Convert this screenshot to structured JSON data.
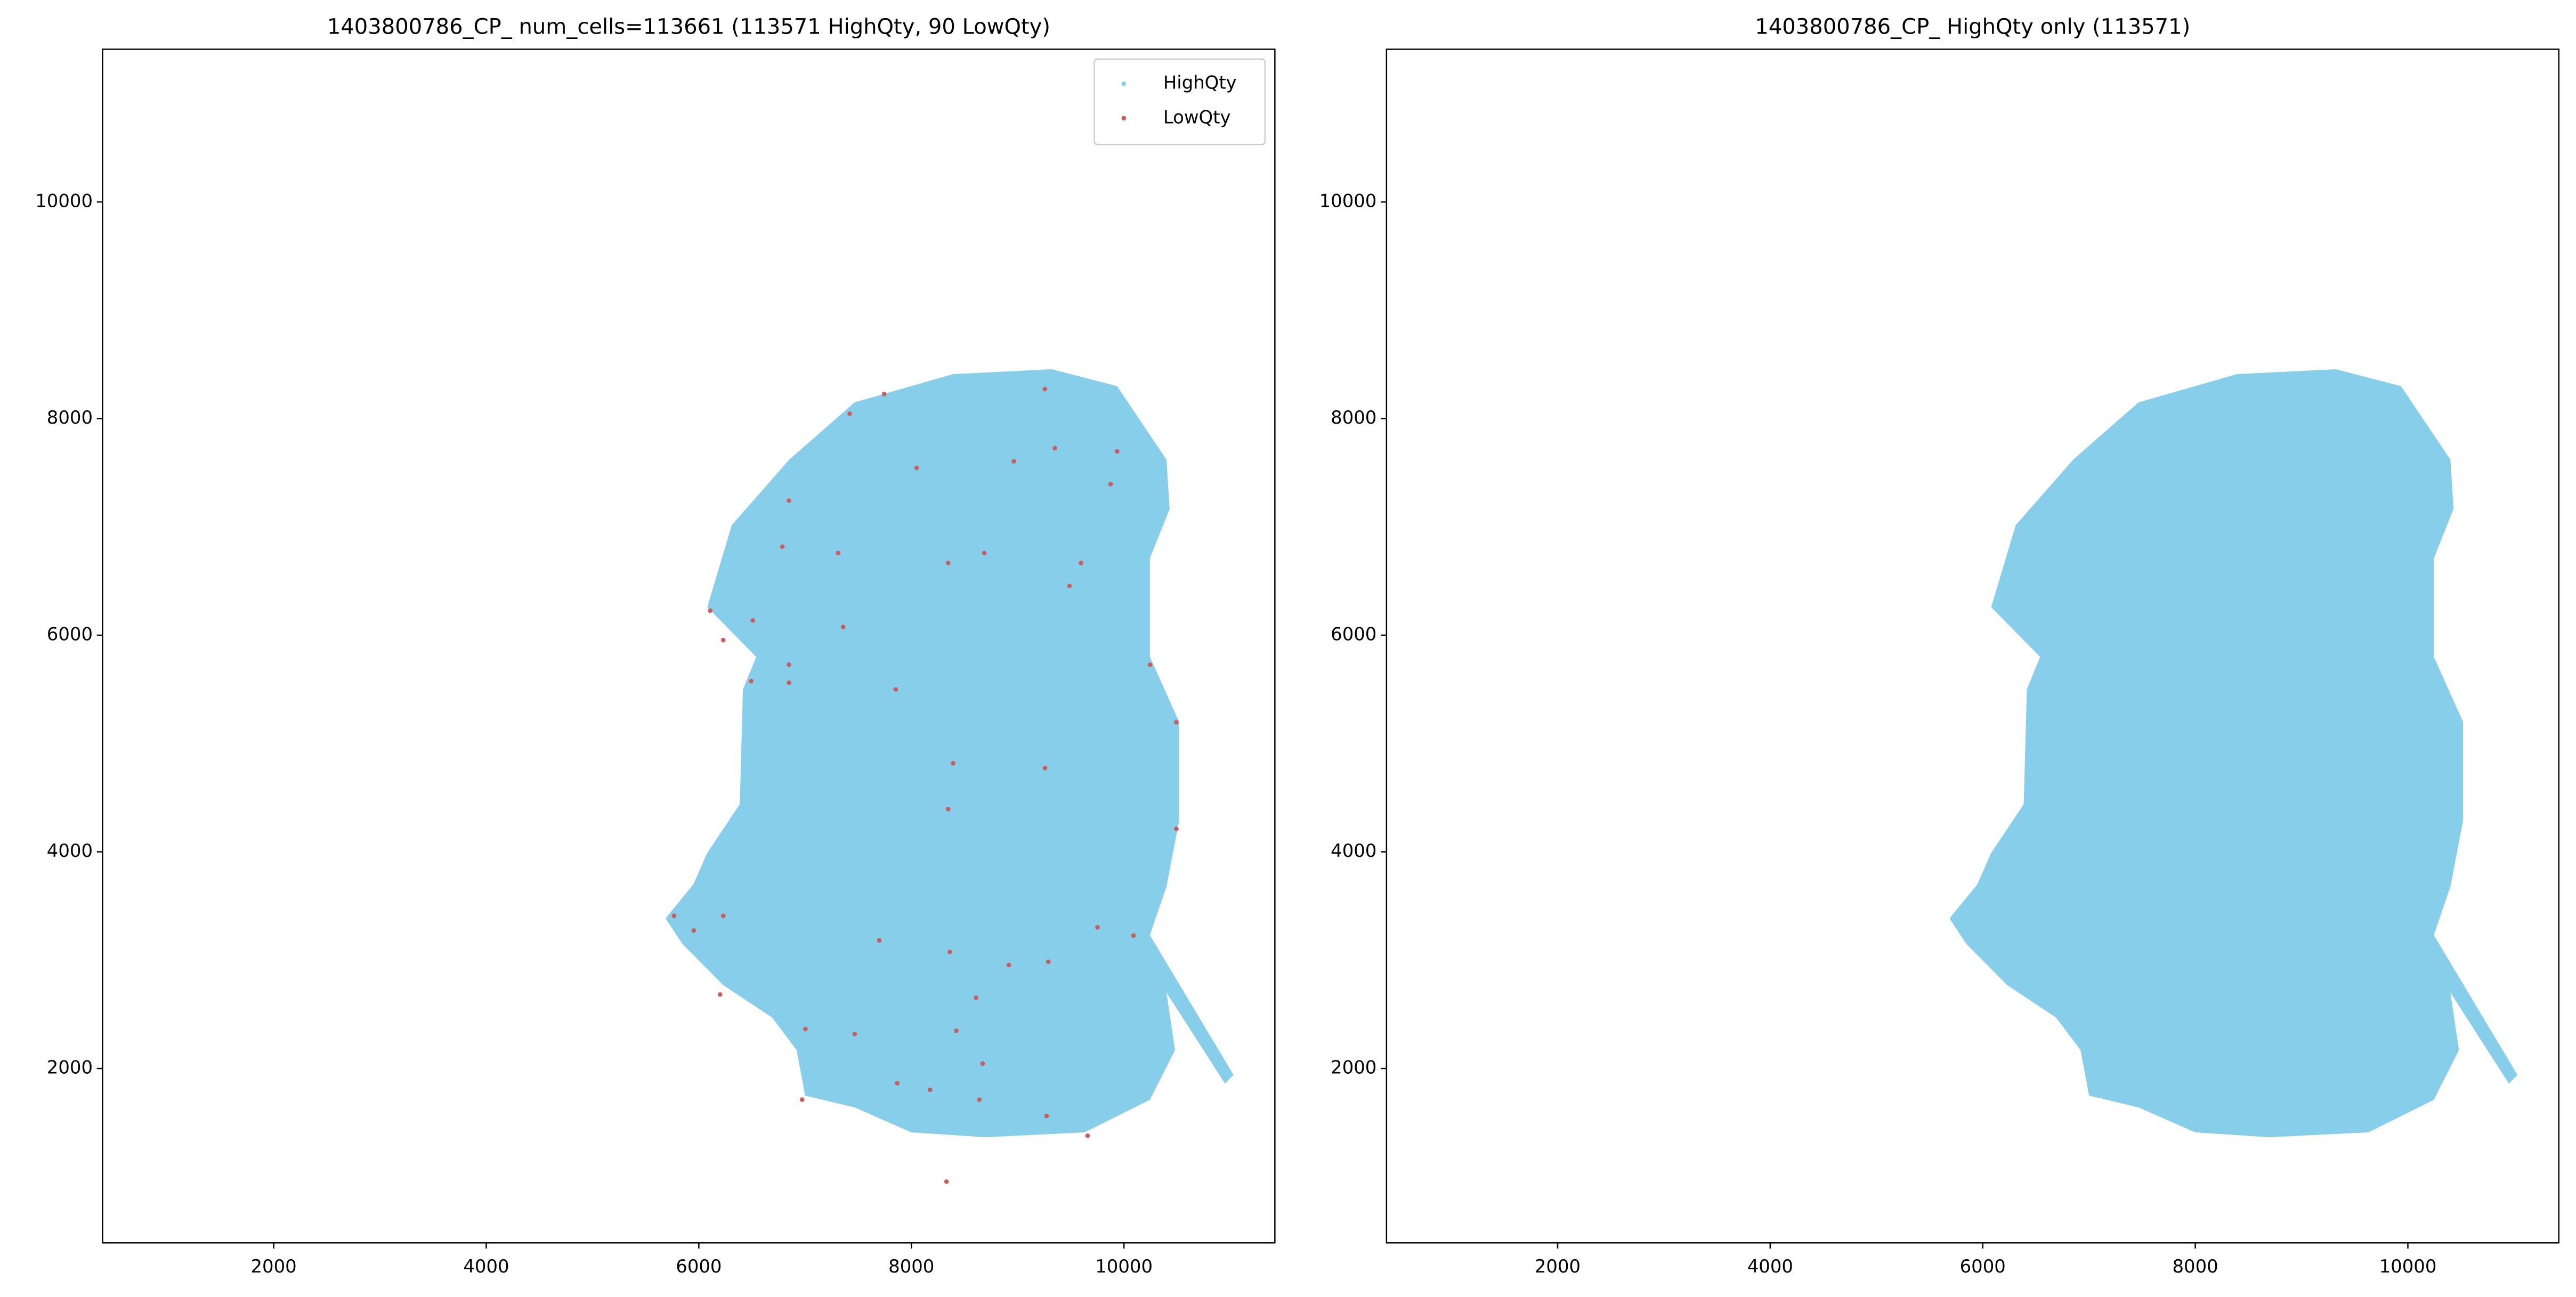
{
  "chart_data": [
    {
      "type": "scatter",
      "title": "1403800786_CP_ num_cells=113661 (113571 HighQty, 90 LowQty)",
      "xlim": [
        390,
        11420
      ],
      "ylim": [
        390,
        11410
      ],
      "xticks": [
        2000,
        4000,
        6000,
        8000,
        10000
      ],
      "yticks": [
        2000,
        4000,
        6000,
        8000,
        10000
      ],
      "legend": "upper right",
      "series": [
        {
          "name": "HighQty",
          "color": "#87ceeb",
          "shape": "region",
          "x": [
            5700,
            5950,
            6076,
            6385,
            6415,
            6540,
            6080,
            6310,
            6850,
            7465,
            8390,
            9320,
            9935,
            10400,
            10430,
            10245,
            10245,
            10520,
            10520,
            10400,
            10245,
            11030,
            10950,
            10400,
            10480,
            10245,
            9630,
            8700,
            8000,
            7465,
            7000,
            6920,
            6690,
            6230,
            5845,
            5690
          ],
          "y": [
            3400,
            3700,
            3985,
            4440,
            5500,
            5800,
            6260,
            7015,
            7620,
            8150,
            8410,
            8455,
            8300,
            7620,
            7165,
            6710,
            5800,
            5200,
            4290,
            3680,
            3230,
            1940,
            1860,
            2700,
            2170,
            1710,
            1410,
            1365,
            1410,
            1640,
            1750,
            2170,
            2470,
            2770,
            3150,
            3380
          ]
        },
        {
          "name": "LowQty",
          "color": "#cd5c5c",
          "shape": "points",
          "x": [
            7744,
            7420,
            9257,
            8050,
            9350,
            8964,
            9936,
            9874,
            6848,
            7311,
            6786,
            8346,
            8686,
            9596,
            9488,
            6107,
            6508,
            7358,
            6230,
            6848,
            6848,
            6493,
            7852,
            10245,
            10493,
            8392,
            9257,
            8346,
            10493,
            6230,
            5767,
            5952,
            7698,
            8361,
            8917,
            9288,
            9751,
            10090,
            6200,
            7003,
            7467,
            8423,
            8608,
            8670,
            7867,
            8176,
            6972,
            8639,
            9272,
            9658,
            8330
          ],
          "y": [
            8227,
            8045,
            8273,
            7545,
            7727,
            7606,
            7697,
            7394,
            7243,
            6758,
            6818,
            6667,
            6758,
            6667,
            6455,
            6227,
            6136,
            6076,
            5955,
            5728,
            5561,
            5576,
            5500,
            5727,
            5197,
            4818,
            4773,
            4394,
            4212,
            3409,
            3409,
            3273,
            3182,
            3076,
            2955,
            2985,
            3303,
            3227,
            2683,
            2364,
            2318,
            2348,
            2652,
            2045,
            1864,
            1803,
            1712,
            1712,
            1561,
            1379,
            955
          ]
        }
      ]
    },
    {
      "type": "scatter",
      "title": "1403800786_CP_ HighQty only (113571)",
      "xlim": [
        390,
        11420
      ],
      "ylim": [
        390,
        11410
      ],
      "xticks": [
        2000,
        4000,
        6000,
        8000,
        10000
      ],
      "yticks": [
        2000,
        4000,
        6000,
        8000,
        10000
      ],
      "series": [
        {
          "color": "#87ceeb",
          "shape": "region",
          "x": [
            5700,
            5950,
            6076,
            6385,
            6415,
            6540,
            6080,
            6310,
            6850,
            7465,
            8390,
            9320,
            9935,
            10400,
            10430,
            10245,
            10245,
            10520,
            10520,
            10400,
            10245,
            11030,
            10950,
            10400,
            10480,
            10245,
            9630,
            8700,
            8000,
            7465,
            7000,
            6920,
            6690,
            6230,
            5845,
            5690
          ],
          "y": [
            3400,
            3700,
            3985,
            4440,
            5500,
            5800,
            6260,
            7015,
            7620,
            8150,
            8410,
            8455,
            8300,
            7620,
            7165,
            6710,
            5800,
            5200,
            4290,
            3680,
            3230,
            1940,
            1860,
            2700,
            2170,
            1710,
            1410,
            1365,
            1410,
            1640,
            1750,
            2170,
            2470,
            2770,
            3150,
            3380
          ]
        }
      ]
    }
  ]
}
